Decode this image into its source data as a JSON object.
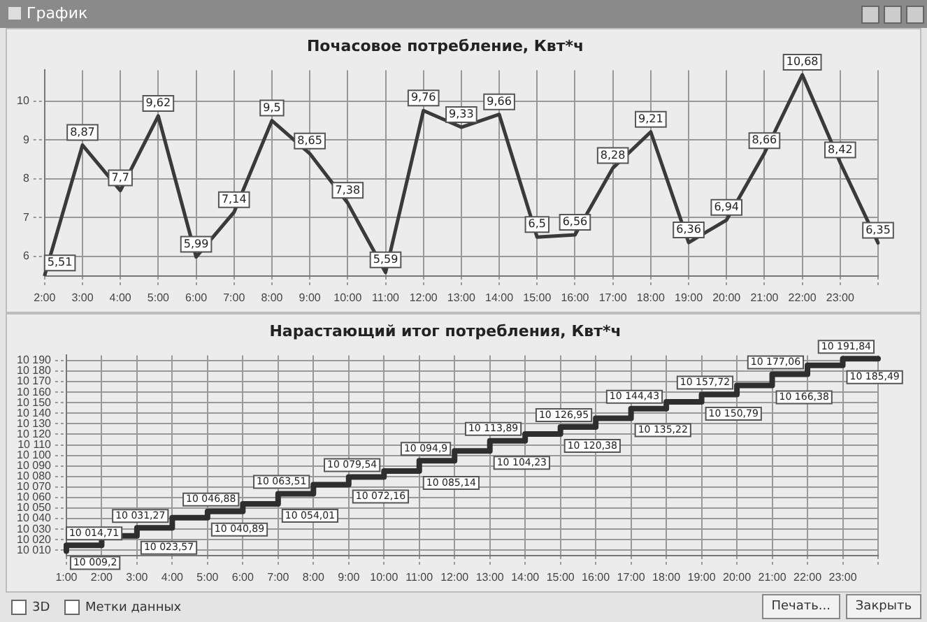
{
  "chart_data": [
    {
      "type": "line",
      "title": "Почасовое потребление, Квт*ч",
      "annotations": [
        "График"
      ],
      "categories": [
        "2:00",
        "3:00",
        "4:00",
        "5:00",
        "6:00",
        "7:00",
        "8:00",
        "9:00",
        "10:00",
        "11:00",
        "12:00",
        "13:00",
        "14:00",
        "15:00",
        "16:00",
        "17:00",
        "18:00",
        "19:00",
        "20:00",
        "21:00",
        "22:00",
        "23:00",
        null
      ],
      "series": [
        {
          "color": "#3a3a3a",
          "values": [
            5.51,
            8.87,
            7.7,
            9.62,
            5.99,
            7.14,
            9.5,
            8.65,
            7.38,
            5.59,
            9.76,
            9.33,
            9.66,
            6.5,
            6.56,
            8.28,
            9.21,
            6.36,
            6.94,
            8.66,
            10.68,
            8.42,
            6.35
          ],
          "value_labels": [
            "5,51",
            "8,87",
            "7,7",
            "9,62",
            "5,99",
            "7,14",
            "9,5",
            "8,65",
            "7,38",
            "5,59",
            "9,76",
            "9,33",
            "9,66",
            "6,5",
            "6,56",
            "8,28",
            "9,21",
            "6,36",
            "6,94",
            "8,66",
            "10,68",
            "8,42",
            "6,35"
          ]
        }
      ],
      "ylim": [
        5.5,
        10.8
      ],
      "yticks": [
        6,
        7,
        8,
        9,
        10
      ],
      "grid": true,
      "legend": false,
      "marker": "none",
      "line_style": "solid"
    },
    {
      "type": "step",
      "title": "Нарастающий итог потребления, Квт*ч",
      "annotations": [
        "3D",
        "Метки данных",
        "Печать...",
        "Закрыть"
      ],
      "categories": [
        "1:00",
        "2:00",
        "3:00",
        "4:00",
        "5:00",
        "6:00",
        "7:00",
        "8:00",
        "9:00",
        "10:00",
        "11:00",
        "12:00",
        "13:00",
        "14:00",
        "15:00",
        "16:00",
        "17:00",
        "18:00",
        "19:00",
        "20:00",
        "21:00",
        "22:00",
        "23:00",
        null
      ],
      "series": [
        {
          "color": "#2e2e2e",
          "values": [
            10009.2,
            10014.71,
            10023.57,
            10031.27,
            10040.89,
            10046.88,
            10054.01,
            10063.51,
            10072.16,
            10079.54,
            10085.14,
            10094.9,
            10104.23,
            10113.89,
            10120.38,
            10126.95,
            10135.22,
            10144.43,
            10150.79,
            10157.72,
            10166.38,
            10177.06,
            10185.49,
            10191.84
          ],
          "value_labels": [
            "10 009,2",
            "10 014,71",
            "10 023,57",
            "10 031,27",
            "10 040,89",
            "10 046,88",
            "10 054,01",
            "10 063,51",
            "10 072,16",
            "10 079,54",
            "10 085,14",
            "10 094,9",
            "10 104,23",
            "10 113,89",
            "10 120,38",
            "10 126,95",
            "10 135,22",
            "10 144,43",
            "10 150,79",
            "10 157,72",
            "10 166,38",
            "10 177,06",
            "10 185,49",
            "10 191,84"
          ]
        }
      ],
      "ylim": [
        10005,
        10195
      ],
      "yticks": [
        {
          "value": 10010,
          "label": "10 010"
        },
        {
          "value": 10020,
          "label": "10 020"
        },
        {
          "value": 10030,
          "label": "10 030"
        },
        {
          "value": 10040,
          "label": "10 040"
        },
        {
          "value": 10050,
          "label": "10 050"
        },
        {
          "value": 10060,
          "label": "10 060"
        },
        {
          "value": 10070,
          "label": "10 070"
        },
        {
          "value": 10080,
          "label": "10 080"
        },
        {
          "value": 10090,
          "label": "10 090"
        },
        {
          "value": 10100,
          "label": "10 100"
        },
        {
          "value": 10110,
          "label": "10 110"
        },
        {
          "value": 10120,
          "label": "10 120"
        },
        {
          "value": 10130,
          "label": "10 130"
        },
        {
          "value": 10140,
          "label": "10 140"
        },
        {
          "value": 10150,
          "label": "10 150"
        },
        {
          "value": 10160,
          "label": "10 160"
        },
        {
          "value": 10170,
          "label": "10 170"
        },
        {
          "value": 10180,
          "label": "10 180"
        },
        {
          "value": 10190,
          "label": "10 190"
        }
      ],
      "grid": true,
      "legend": false,
      "marker": "none",
      "line_style": "solid"
    }
  ]
}
